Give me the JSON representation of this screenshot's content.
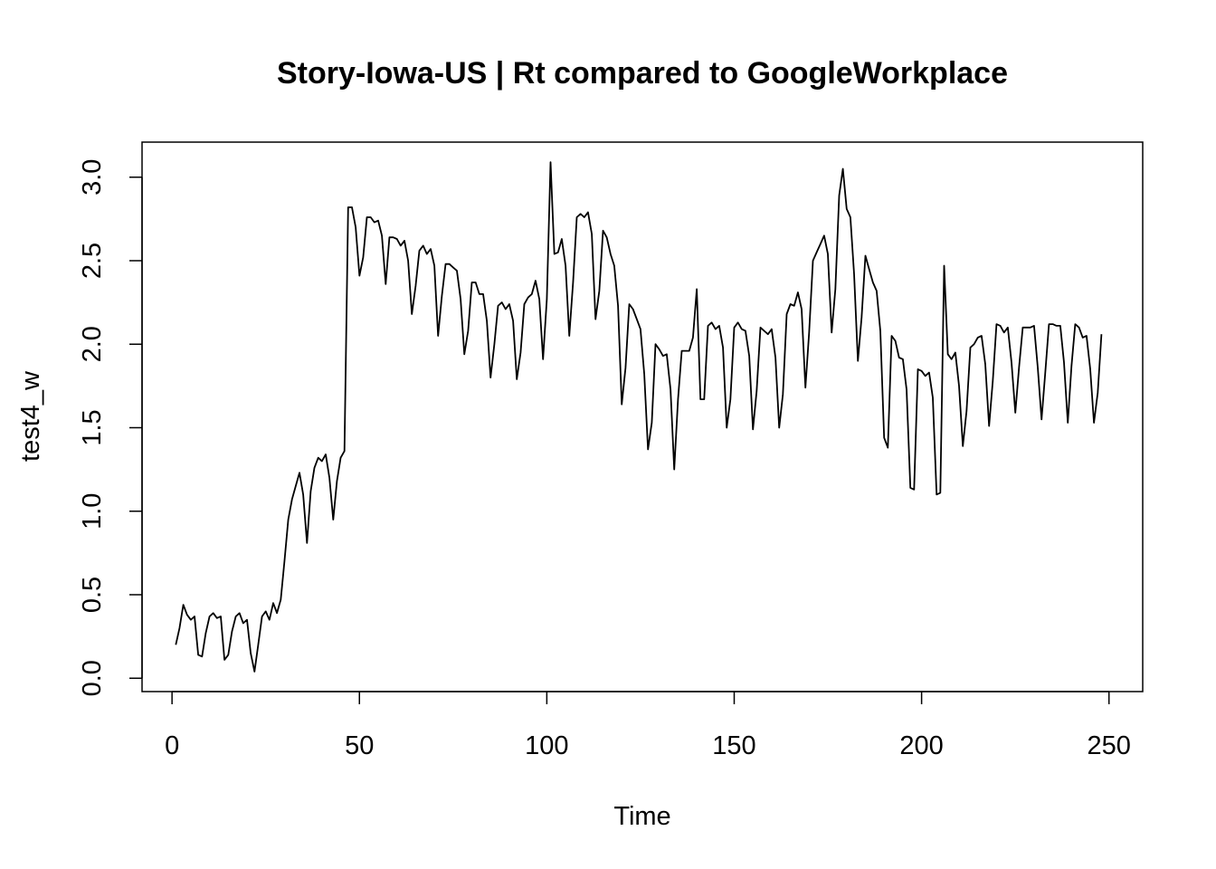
{
  "chart_data": {
    "type": "line",
    "title": "Story-Iowa-US | Rt compared to GoogleWorkplace",
    "xlabel": "Time",
    "ylabel": "test4_w",
    "xlim": [
      -8,
      259
    ],
    "ylim": [
      -0.08,
      3.21
    ],
    "xticks": [
      0,
      50,
      100,
      150,
      200,
      250
    ],
    "yticks": [
      0.0,
      0.5,
      1.0,
      1.5,
      2.0,
      2.5,
      3.0
    ],
    "xtick_labels": [
      "0",
      "50",
      "100",
      "150",
      "200",
      "250"
    ],
    "ytick_labels": [
      "0.0",
      "0.5",
      "1.0",
      "1.5",
      "2.0",
      "2.5",
      "3.0"
    ],
    "grid": false,
    "legend": "none",
    "line_color": "#000000",
    "series": [
      {
        "x": [
          1,
          2,
          3,
          4,
          5,
          6,
          7,
          8,
          9,
          10,
          11,
          12,
          13,
          14,
          15,
          16,
          17,
          18,
          19,
          20,
          21,
          22,
          23,
          24,
          25,
          26,
          27,
          28,
          29,
          30,
          31,
          32,
          33,
          34,
          35,
          36,
          37,
          38,
          39,
          40,
          41,
          42,
          43,
          44,
          45,
          46,
          47,
          48,
          49,
          50,
          51,
          52,
          53,
          54,
          55,
          56,
          57,
          58,
          59,
          60,
          61,
          62,
          63,
          64,
          65,
          66,
          67,
          68,
          69,
          70,
          71,
          72,
          73,
          74,
          75,
          76,
          77,
          78,
          79,
          80,
          81,
          82,
          83,
          84,
          85,
          86,
          87,
          88,
          89,
          90,
          91,
          92,
          93,
          94,
          95,
          96,
          97,
          98,
          99,
          100,
          101,
          102,
          103,
          104,
          105,
          106,
          107,
          108,
          109,
          110,
          111,
          112,
          113,
          114,
          115,
          116,
          117,
          118,
          119,
          120,
          121,
          122,
          123,
          124,
          125,
          126,
          127,
          128,
          129,
          130,
          131,
          132,
          133,
          134,
          135,
          136,
          137,
          138,
          139,
          140,
          141,
          142,
          143,
          144,
          145,
          146,
          147,
          148,
          149,
          150,
          151,
          152,
          153,
          154,
          155,
          156,
          157,
          158,
          159,
          160,
          161,
          162,
          163,
          164,
          165,
          166,
          167,
          168,
          169,
          170,
          171,
          172,
          173,
          174,
          175,
          176,
          177,
          178,
          179,
          180,
          181,
          182,
          183,
          184,
          185,
          186,
          187,
          188,
          189,
          190,
          191,
          192,
          193,
          194,
          195,
          196,
          197,
          198,
          199,
          200,
          201,
          202,
          203,
          204,
          205,
          206,
          207,
          208,
          209,
          210,
          211,
          212,
          213,
          214,
          215,
          216,
          217,
          218,
          219,
          220,
          221,
          222,
          223,
          224,
          225,
          226,
          227,
          228,
          229,
          230,
          231,
          232,
          233,
          234,
          235,
          236,
          237,
          238,
          239,
          240,
          241,
          242,
          243,
          244,
          245,
          246,
          247,
          248
        ],
        "values": [
          0.2,
          0.3,
          0.44,
          0.38,
          0.35,
          0.37,
          0.14,
          0.13,
          0.27,
          0.37,
          0.39,
          0.36,
          0.37,
          0.11,
          0.14,
          0.28,
          0.37,
          0.39,
          0.33,
          0.35,
          0.15,
          0.04,
          0.2,
          0.37,
          0.4,
          0.35,
          0.45,
          0.39,
          0.47,
          0.7,
          0.95,
          1.07,
          1.15,
          1.23,
          1.1,
          0.81,
          1.12,
          1.26,
          1.32,
          1.3,
          1.34,
          1.2,
          0.95,
          1.18,
          1.32,
          1.36,
          2.82,
          2.82,
          2.7,
          2.41,
          2.52,
          2.76,
          2.76,
          2.73,
          2.74,
          2.65,
          2.36,
          2.64,
          2.64,
          2.63,
          2.59,
          2.62,
          2.5,
          2.18,
          2.35,
          2.56,
          2.59,
          2.54,
          2.57,
          2.47,
          2.05,
          2.29,
          2.48,
          2.48,
          2.46,
          2.44,
          2.27,
          1.94,
          2.08,
          2.37,
          2.37,
          2.3,
          2.3,
          2.14,
          1.8,
          2.0,
          2.23,
          2.25,
          2.21,
          2.24,
          2.14,
          1.79,
          1.95,
          2.24,
          2.28,
          2.3,
          2.38,
          2.27,
          1.91,
          2.27,
          3.09,
          2.54,
          2.55,
          2.63,
          2.47,
          2.05,
          2.37,
          2.76,
          2.78,
          2.76,
          2.79,
          2.66,
          2.15,
          2.32,
          2.68,
          2.64,
          2.54,
          2.47,
          2.23,
          1.64,
          1.86,
          2.24,
          2.21,
          2.15,
          2.09,
          1.82,
          1.37,
          1.53,
          2.0,
          1.97,
          1.93,
          1.94,
          1.73,
          1.25,
          1.67,
          1.96,
          1.96,
          1.96,
          2.04,
          2.33,
          1.67,
          1.67,
          2.11,
          2.13,
          2.09,
          2.11,
          1.98,
          1.5,
          1.67,
          2.1,
          2.13,
          2.09,
          2.08,
          1.93,
          1.49,
          1.72,
          2.1,
          2.08,
          2.06,
          2.09,
          1.92,
          1.5,
          1.7,
          2.18,
          2.24,
          2.23,
          2.31,
          2.21,
          1.74,
          2.07,
          2.5,
          2.55,
          2.6,
          2.65,
          2.54,
          2.07,
          2.33,
          2.89,
          3.05,
          2.81,
          2.76,
          2.42,
          1.9,
          2.16,
          2.53,
          2.45,
          2.37,
          2.32,
          2.08,
          1.44,
          1.38,
          2.05,
          2.02,
          1.92,
          1.91,
          1.73,
          1.14,
          1.13,
          1.85,
          1.84,
          1.81,
          1.83,
          1.68,
          1.1,
          1.11,
          2.47,
          1.94,
          1.91,
          1.95,
          1.75,
          1.39,
          1.6,
          1.98,
          2.0,
          2.04,
          2.05,
          1.88,
          1.51,
          1.78,
          2.12,
          2.11,
          2.07,
          2.1,
          1.89,
          1.59,
          1.86,
          2.1,
          2.1,
          2.1,
          2.11,
          1.86,
          1.55,
          1.83,
          2.12,
          2.12,
          2.11,
          2.11,
          1.89,
          1.53,
          1.87,
          2.12,
          2.1,
          2.04,
          2.05,
          1.85,
          1.53,
          1.71,
          2.06
        ]
      }
    ]
  }
}
